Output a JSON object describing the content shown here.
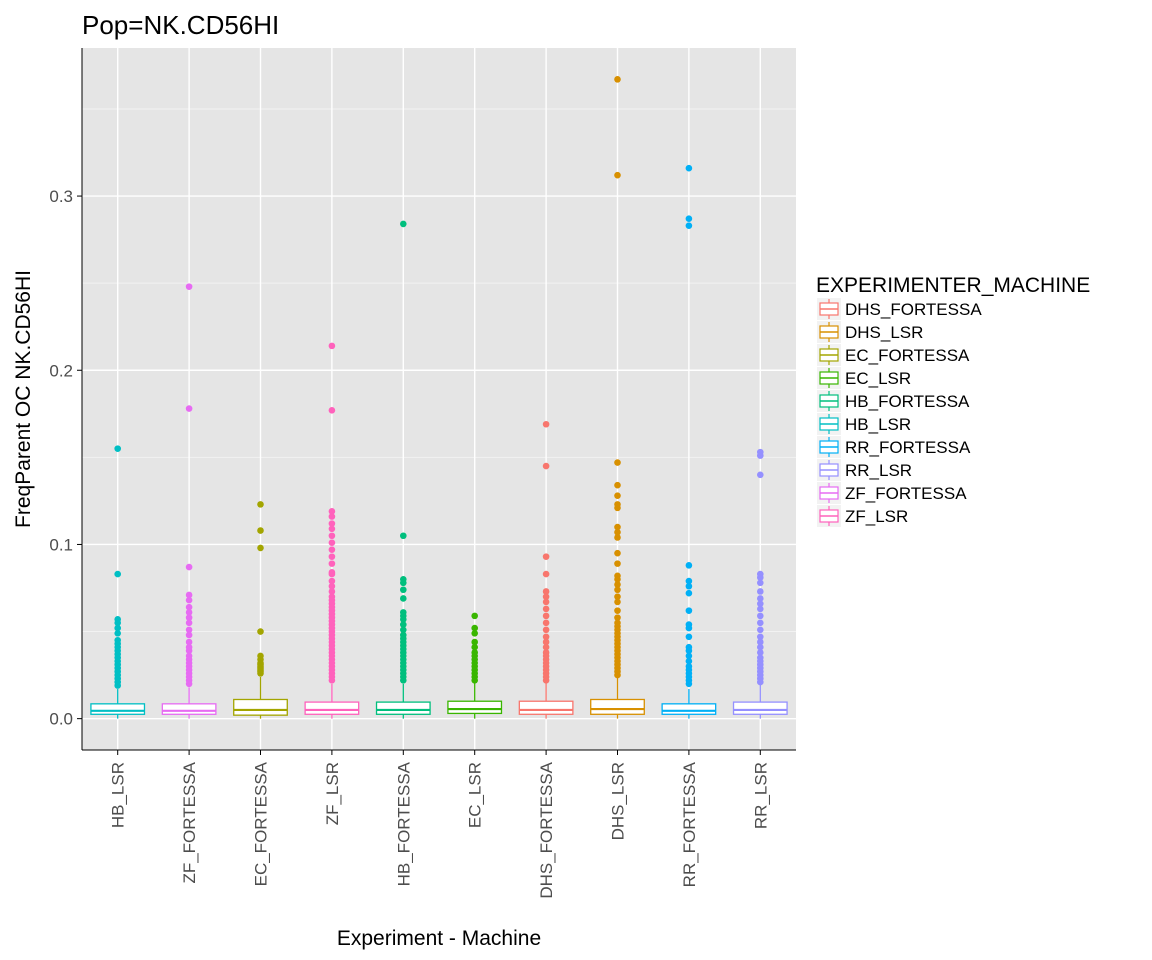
{
  "colors": {
    "panel_bg": "#e5e5e5",
    "grid_major": "#ffffff",
    "grid_minor": "#f2f2f2",
    "axis_text": "#4d4d4d",
    "DHS_FORTESSA": "#f8766d",
    "DHS_LSR": "#d89000",
    "EC_FORTESSA": "#a3a500",
    "EC_LSR": "#39b600",
    "HB_FORTESSA": "#00bf7d",
    "HB_LSR": "#00bfc4",
    "RR_FORTESSA": "#00b0f6",
    "RR_LSR": "#9590ff",
    "ZF_FORTESSA": "#e76bf3",
    "ZF_LSR": "#ff62bc"
  },
  "chart_data": {
    "type": "box",
    "title": "Pop=NK.CD56HI",
    "xlabel": "Experiment - Machine",
    "ylabel": "FreqParent OC  NK.CD56HI",
    "ylim": [
      -0.018,
      0.385
    ],
    "yticks": [
      0.0,
      0.1,
      0.2,
      0.3
    ],
    "ytick_labels": [
      "0.0",
      "0.1",
      "0.2",
      "0.3"
    ],
    "grid": true,
    "categories": [
      "HB_LSR",
      "ZF_FORTESSA",
      "EC_FORTESSA",
      "ZF_LSR",
      "HB_FORTESSA",
      "EC_LSR",
      "DHS_FORTESSA",
      "DHS_LSR",
      "RR_FORTESSA",
      "RR_LSR"
    ],
    "boxes": [
      {
        "group": "HB_LSR",
        "q1": 0.0025,
        "median": 0.0045,
        "q3": 0.0085,
        "whisker_low": 0.0,
        "whisker_high": 0.017,
        "outliers": [
          0.155,
          0.083,
          0.057,
          0.055,
          0.052,
          0.049,
          0.045,
          0.043,
          0.041,
          0.039,
          0.037,
          0.035,
          0.033,
          0.031,
          0.029,
          0.027,
          0.025,
          0.023,
          0.021,
          0.019
        ]
      },
      {
        "group": "ZF_FORTESSA",
        "q1": 0.0025,
        "median": 0.0045,
        "q3": 0.0085,
        "whisker_low": 0.0,
        "whisker_high": 0.018,
        "outliers": [
          0.248,
          0.178,
          0.087,
          0.071,
          0.068,
          0.064,
          0.061,
          0.058,
          0.055,
          0.051,
          0.048,
          0.044,
          0.041,
          0.039,
          0.036,
          0.034,
          0.032,
          0.03,
          0.028,
          0.026,
          0.024,
          0.022,
          0.02
        ]
      },
      {
        "group": "EC_FORTESSA",
        "q1": 0.002,
        "median": 0.005,
        "q3": 0.011,
        "whisker_low": 0.0,
        "whisker_high": 0.024,
        "outliers": [
          0.123,
          0.108,
          0.098,
          0.05,
          0.036,
          0.034,
          0.032,
          0.031,
          0.03,
          0.029,
          0.028,
          0.027,
          0.026
        ]
      },
      {
        "group": "ZF_LSR",
        "q1": 0.0025,
        "median": 0.005,
        "q3": 0.0095,
        "whisker_low": 0.0,
        "whisker_high": 0.02,
        "outliers": [
          0.214,
          0.177,
          0.119,
          0.116,
          0.112,
          0.109,
          0.105,
          0.101,
          0.097,
          0.093,
          0.089,
          0.084,
          0.083,
          0.079,
          0.076,
          0.073,
          0.07,
          0.068,
          0.066,
          0.064,
          0.062,
          0.06,
          0.058,
          0.056,
          0.054,
          0.052,
          0.05,
          0.048,
          0.046,
          0.044,
          0.042,
          0.04,
          0.038,
          0.036,
          0.034,
          0.032,
          0.03,
          0.028,
          0.026,
          0.024,
          0.022
        ]
      },
      {
        "group": "HB_FORTESSA",
        "q1": 0.0025,
        "median": 0.005,
        "q3": 0.0095,
        "whisker_low": 0.0,
        "whisker_high": 0.02,
        "outliers": [
          0.284,
          0.105,
          0.08,
          0.078,
          0.074,
          0.069,
          0.061,
          0.059,
          0.057,
          0.054,
          0.051,
          0.048,
          0.046,
          0.044,
          0.042,
          0.04,
          0.038,
          0.036,
          0.034,
          0.032,
          0.03,
          0.028,
          0.026,
          0.024,
          0.022
        ]
      },
      {
        "group": "EC_LSR",
        "q1": 0.003,
        "median": 0.0055,
        "q3": 0.01,
        "whisker_low": 0.0,
        "whisker_high": 0.021,
        "outliers": [
          0.059,
          0.052,
          0.049,
          0.044,
          0.041,
          0.038,
          0.036,
          0.034,
          0.032,
          0.03,
          0.028,
          0.026,
          0.024,
          0.022
        ]
      },
      {
        "group": "DHS_FORTESSA",
        "q1": 0.0025,
        "median": 0.005,
        "q3": 0.01,
        "whisker_low": 0.0,
        "whisker_high": 0.021,
        "outliers": [
          0.169,
          0.145,
          0.093,
          0.083,
          0.073,
          0.07,
          0.067,
          0.063,
          0.059,
          0.055,
          0.051,
          0.047,
          0.044,
          0.041,
          0.038,
          0.036,
          0.034,
          0.032,
          0.03,
          0.028,
          0.026,
          0.024,
          0.022
        ]
      },
      {
        "group": "DHS_LSR",
        "q1": 0.0025,
        "median": 0.0055,
        "q3": 0.011,
        "whisker_low": 0.0,
        "whisker_high": 0.024,
        "outliers": [
          0.367,
          0.312,
          0.147,
          0.134,
          0.128,
          0.123,
          0.121,
          0.11,
          0.107,
          0.104,
          0.095,
          0.089,
          0.082,
          0.08,
          0.077,
          0.074,
          0.07,
          0.067,
          0.062,
          0.058,
          0.055,
          0.053,
          0.051,
          0.049,
          0.047,
          0.045,
          0.043,
          0.041,
          0.039,
          0.037,
          0.035,
          0.033,
          0.031,
          0.029,
          0.027,
          0.025
        ]
      },
      {
        "group": "RR_FORTESSA",
        "q1": 0.0025,
        "median": 0.0045,
        "q3": 0.0085,
        "whisker_low": 0.0,
        "whisker_high": 0.017,
        "outliers": [
          0.316,
          0.287,
          0.283,
          0.088,
          0.079,
          0.076,
          0.072,
          0.062,
          0.054,
          0.052,
          0.047,
          0.041,
          0.039,
          0.036,
          0.033,
          0.03,
          0.028,
          0.026,
          0.024,
          0.022,
          0.02
        ]
      },
      {
        "group": "RR_LSR",
        "q1": 0.0025,
        "median": 0.005,
        "q3": 0.0095,
        "whisker_low": 0.0,
        "whisker_high": 0.02,
        "outliers": [
          0.153,
          0.151,
          0.14,
          0.083,
          0.081,
          0.078,
          0.073,
          0.069,
          0.066,
          0.063,
          0.059,
          0.055,
          0.051,
          0.047,
          0.044,
          0.041,
          0.038,
          0.035,
          0.033,
          0.031,
          0.029,
          0.027,
          0.025,
          0.023,
          0.021
        ]
      }
    ],
    "legend": {
      "title": "EXPERIMENTER_MACHINE",
      "placement": "right",
      "entries": [
        "DHS_FORTESSA",
        "DHS_LSR",
        "EC_FORTESSA",
        "EC_LSR",
        "HB_FORTESSA",
        "HB_LSR",
        "RR_FORTESSA",
        "RR_LSR",
        "ZF_FORTESSA",
        "ZF_LSR"
      ]
    }
  }
}
